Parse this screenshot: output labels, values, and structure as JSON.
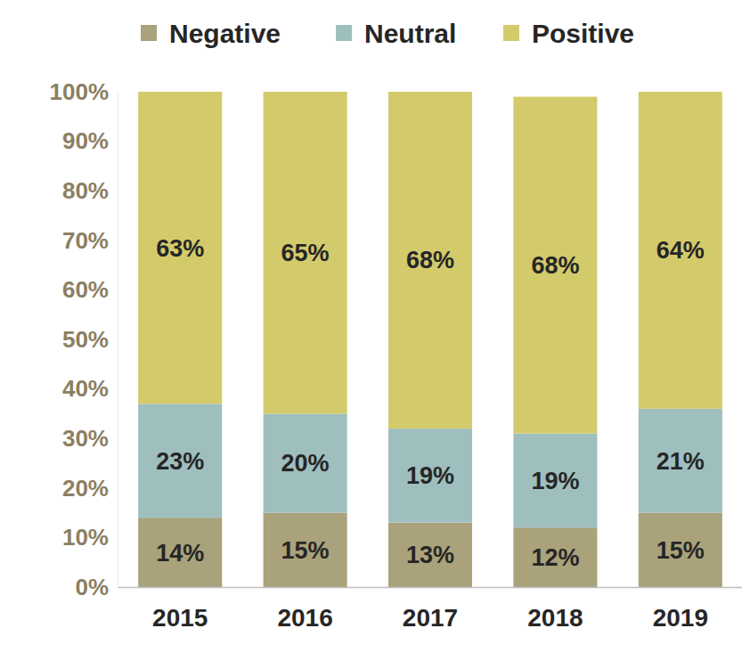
{
  "chart_data": {
    "type": "bar",
    "stacked": true,
    "data_labels": true,
    "legend": "top",
    "grid": false,
    "categories": [
      "2015",
      "2016",
      "2017",
      "2018",
      "2019"
    ],
    "ylim": [
      0,
      100
    ],
    "yticks": [
      {
        "value": 0,
        "label": "0%"
      },
      {
        "value": 10,
        "label": "10%"
      },
      {
        "value": 20,
        "label": "20%"
      },
      {
        "value": 30,
        "label": "30%"
      },
      {
        "value": 40,
        "label": "40%"
      },
      {
        "value": 50,
        "label": "50%"
      },
      {
        "value": 60,
        "label": "60%"
      },
      {
        "value": 70,
        "label": "70%"
      },
      {
        "value": 80,
        "label": "80%"
      },
      {
        "value": 90,
        "label": "90%"
      },
      {
        "value": 100,
        "label": "100%"
      }
    ],
    "series": [
      {
        "name": "Negative",
        "color": "#a9a27b",
        "values": [
          14,
          15,
          13,
          12,
          15
        ],
        "value_labels": [
          "14%",
          "15%",
          "13%",
          "12%",
          "15%"
        ]
      },
      {
        "name": "Neutral",
        "color": "#9fbfbf",
        "values": [
          23,
          20,
          19,
          19,
          21
        ],
        "value_labels": [
          "23%",
          "20%",
          "19%",
          "19%",
          "21%"
        ]
      },
      {
        "name": "Positive",
        "color": "#d3cb6b",
        "values": [
          63,
          65,
          68,
          68,
          64
        ],
        "value_labels": [
          "63%",
          "65%",
          "68%",
          "68%",
          "64%"
        ]
      }
    ]
  }
}
